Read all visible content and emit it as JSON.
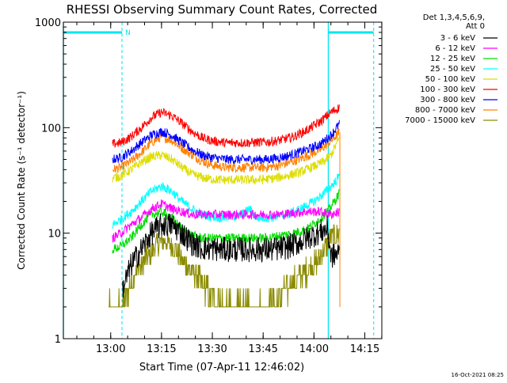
{
  "chart_data": {
    "type": "line",
    "title": "RHESSI Observing Summary Count Rates, Corrected",
    "xlabel": "Start Time (07-Apr-11 12:46:02)",
    "ylabel": "Corrected Count Rate (s⁻¹ detector⁻¹)",
    "y_scale": "log",
    "ylim": [
      1,
      1000
    ],
    "xlim_minutes_after_start": [
      0,
      94
    ],
    "x_ticks": [
      "13:00",
      "13:15",
      "13:30",
      "13:45",
      "14:00",
      "14:15"
    ],
    "x_tick_minutes": [
      13.97,
      28.97,
      43.97,
      58.97,
      73.97,
      88.97
    ],
    "y_ticks": [
      "1",
      "10",
      "100",
      "1000"
    ],
    "y_tick_values": [
      1,
      10,
      100,
      1000
    ],
    "legend_header": [
      "Det 1,3,4,5,6,9,",
      "Att 0"
    ],
    "legend_position": "top-right (outside plot)",
    "footer_date": "16-Oct-2021 08:25",
    "markers": {
      "cyan_solid_lines_min": [
        0,
        78.2
      ],
      "cyan_dashed_lines_min": [
        17.3,
        91.6
      ],
      "cyan_top_bars_min": [
        [
          0,
          17.3
        ],
        [
          78.2,
          91.6
        ]
      ],
      "n_label": "N"
    },
    "profile_note": "times in minutes after 12:46:02; rates in counts s^-1 detector^-1",
    "series": [
      {
        "name": "3 - 6 keV",
        "color": "#000000",
        "start": 17.5,
        "end": 81.5,
        "points": [
          [
            17.5,
            3
          ],
          [
            20,
            5
          ],
          [
            23,
            7
          ],
          [
            26,
            10
          ],
          [
            29,
            12
          ],
          [
            32,
            12
          ],
          [
            35,
            10
          ],
          [
            38,
            8
          ],
          [
            41,
            7.2
          ],
          [
            48,
            7
          ],
          [
            56,
            7
          ],
          [
            62,
            7
          ],
          [
            66,
            7.4
          ],
          [
            69,
            8
          ],
          [
            72,
            9
          ],
          [
            75,
            10
          ],
          [
            78,
            11
          ],
          [
            79,
            6
          ],
          [
            81.5,
            6.5
          ]
        ]
      },
      {
        "name": "6 - 12 keV",
        "color": "#ff00ff",
        "start": 14.5,
        "end": 81.5,
        "points": [
          [
            14.5,
            9
          ],
          [
            17,
            10
          ],
          [
            20,
            12
          ],
          [
            23,
            14
          ],
          [
            26,
            17
          ],
          [
            29,
            19
          ],
          [
            32,
            17
          ],
          [
            35,
            16
          ],
          [
            38,
            15
          ],
          [
            44,
            15
          ],
          [
            50,
            15
          ],
          [
            56,
            15
          ],
          [
            60,
            15
          ],
          [
            64,
            15
          ],
          [
            68,
            15.5
          ],
          [
            72,
            16
          ],
          [
            76,
            16
          ],
          [
            79,
            15
          ],
          [
            81.5,
            16
          ]
        ]
      },
      {
        "name": "12 - 25 keV",
        "color": "#00dd00",
        "start": 14.5,
        "end": 81.5,
        "points": [
          [
            14.5,
            7
          ],
          [
            17,
            7.5
          ],
          [
            20,
            9
          ],
          [
            23,
            12
          ],
          [
            26,
            15
          ],
          [
            29,
            16
          ],
          [
            32,
            14
          ],
          [
            35,
            11
          ],
          [
            38,
            9.5
          ],
          [
            41,
            9
          ],
          [
            48,
            9
          ],
          [
            56,
            9
          ],
          [
            60,
            9
          ],
          [
            64,
            9.5
          ],
          [
            68,
            10
          ],
          [
            72,
            11
          ],
          [
            75,
            13
          ],
          [
            78,
            16
          ],
          [
            80,
            20
          ],
          [
            81.5,
            24
          ]
        ]
      },
      {
        "name": "25 - 50 keV",
        "color": "#00ffff",
        "start": 14.5,
        "end": 81.5,
        "points": [
          [
            14.5,
            12
          ],
          [
            17,
            13.5
          ],
          [
            20,
            16
          ],
          [
            23,
            20
          ],
          [
            26,
            25
          ],
          [
            29,
            28
          ],
          [
            32,
            25
          ],
          [
            35,
            20
          ],
          [
            38,
            17
          ],
          [
            41,
            15
          ],
          [
            46,
            14
          ],
          [
            52,
            14.5
          ],
          [
            55,
            17
          ],
          [
            57,
            14
          ],
          [
            61,
            14
          ],
          [
            66,
            15
          ],
          [
            70,
            17
          ],
          [
            74,
            20
          ],
          [
            77,
            24
          ],
          [
            80,
            30
          ],
          [
            81.5,
            35
          ]
        ]
      },
      {
        "name": "50 - 100 keV",
        "color": "#dddd00",
        "start": 14.5,
        "end": 81.5,
        "points": [
          [
            14.5,
            33
          ],
          [
            17,
            35
          ],
          [
            20,
            40
          ],
          [
            23,
            47
          ],
          [
            26,
            53
          ],
          [
            29,
            55
          ],
          [
            32,
            50
          ],
          [
            35,
            42
          ],
          [
            38,
            36
          ],
          [
            42,
            33
          ],
          [
            46,
            32
          ],
          [
            52,
            32
          ],
          [
            58,
            32
          ],
          [
            62,
            33
          ],
          [
            66,
            35
          ],
          [
            70,
            38
          ],
          [
            74,
            43
          ],
          [
            77,
            48
          ],
          [
            79,
            55
          ],
          [
            81.5,
            80
          ]
        ]
      },
      {
        "name": "100 - 300 keV",
        "color": "#ff0000",
        "start": 14.5,
        "end": 81.5,
        "points": [
          [
            14.5,
            70
          ],
          [
            17,
            72
          ],
          [
            20,
            82
          ],
          [
            23,
            100
          ],
          [
            26,
            125
          ],
          [
            29,
            140
          ],
          [
            32,
            130
          ],
          [
            35,
            110
          ],
          [
            38,
            92
          ],
          [
            41,
            80
          ],
          [
            44,
            75
          ],
          [
            48,
            72
          ],
          [
            54,
            72
          ],
          [
            60,
            73
          ],
          [
            64,
            76
          ],
          [
            68,
            82
          ],
          [
            72,
            95
          ],
          [
            76,
            115
          ],
          [
            79,
            140
          ],
          [
            81.5,
            155
          ]
        ]
      },
      {
        "name": "300 - 800 keV",
        "color": "#0000ff",
        "start": 14.5,
        "end": 81.5,
        "points": [
          [
            14.5,
            50
          ],
          [
            17,
            52
          ],
          [
            20,
            60
          ],
          [
            23,
            72
          ],
          [
            26,
            85
          ],
          [
            29,
            92
          ],
          [
            32,
            85
          ],
          [
            35,
            72
          ],
          [
            38,
            62
          ],
          [
            41,
            55
          ],
          [
            44,
            52
          ],
          [
            48,
            50
          ],
          [
            54,
            50
          ],
          [
            60,
            50
          ],
          [
            64,
            52
          ],
          [
            68,
            56
          ],
          [
            72,
            62
          ],
          [
            76,
            70
          ],
          [
            79,
            85
          ],
          [
            81.5,
            108
          ]
        ]
      },
      {
        "name": "800 - 7000 keV",
        "color": "#ff8000",
        "start": 14.5,
        "end": 81.5,
        "points": [
          [
            14.5,
            40
          ],
          [
            17,
            42
          ],
          [
            20,
            48
          ],
          [
            23,
            58
          ],
          [
            26,
            72
          ],
          [
            29,
            82
          ],
          [
            32,
            76
          ],
          [
            35,
            64
          ],
          [
            38,
            55
          ],
          [
            41,
            48
          ],
          [
            44,
            44
          ],
          [
            48,
            42
          ],
          [
            54,
            42
          ],
          [
            60,
            42
          ],
          [
            64,
            44
          ],
          [
            68,
            48
          ],
          [
            72,
            54
          ],
          [
            76,
            62
          ],
          [
            79,
            75
          ],
          [
            81.5,
            90
          ]
        ]
      },
      {
        "name": "7000 - 15000 keV",
        "color": "#8b8b00",
        "start": 13.3,
        "end": 81.5,
        "points": [
          [
            13.3,
            2
          ],
          [
            15,
            2
          ],
          [
            17,
            2
          ],
          [
            19,
            3
          ],
          [
            21,
            4
          ],
          [
            23,
            5
          ],
          [
            25,
            6
          ],
          [
            28,
            8
          ],
          [
            30,
            8.5
          ],
          [
            33,
            7
          ],
          [
            36,
            5
          ],
          [
            39,
            4
          ],
          [
            42,
            3
          ],
          [
            45,
            2.5
          ],
          [
            48,
            2
          ],
          [
            52,
            2
          ],
          [
            56,
            2
          ],
          [
            60,
            2
          ],
          [
            63,
            2.3
          ],
          [
            66,
            3
          ],
          [
            70,
            4
          ],
          [
            74,
            5
          ],
          [
            77,
            7
          ],
          [
            79,
            9
          ],
          [
            81.5,
            10
          ]
        ]
      }
    ]
  }
}
